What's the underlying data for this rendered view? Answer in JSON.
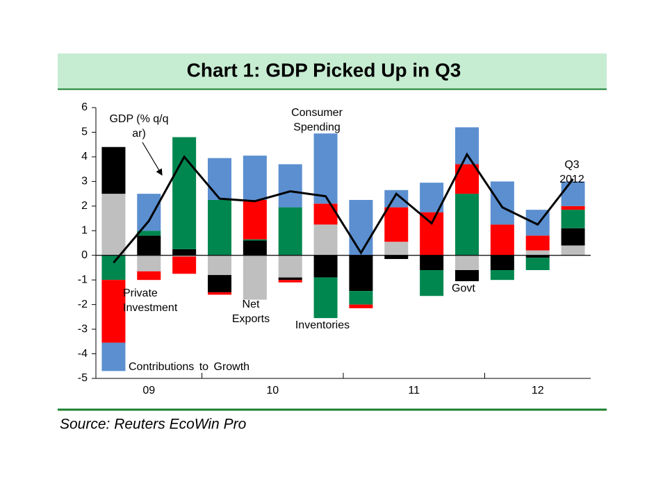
{
  "chart_data": {
    "type": "stacked_bar_line",
    "title": "Chart 1: GDP Picked Up in Q3",
    "source": "Source: Reuters EcoWin Pro",
    "annotations": [
      "Contributions to Growth",
      "Q3 2012"
    ],
    "groups": [
      {
        "label": "09",
        "size": 3
      },
      {
        "label": "10",
        "size": 4
      },
      {
        "label": "11",
        "size": 4
      },
      {
        "label": "12",
        "size": 3
      }
    ],
    "ylim": [
      -5,
      6
    ],
    "yticks": [
      -5,
      -4,
      -3,
      -2,
      -1,
      0,
      1,
      2,
      3,
      4,
      5,
      6
    ],
    "series": [
      {
        "name": "Net Exports",
        "color": "#bfbfbf",
        "values": [
          2.5,
          -0.65,
          -0.05,
          -0.8,
          -1.8,
          -0.9,
          1.25,
          0,
          0.55,
          0,
          -0.6,
          0,
          0.2,
          0.4
        ]
      },
      {
        "name": "Inventories",
        "color": "#000000",
        "values": [
          1.9,
          0.8,
          0.25,
          -0.7,
          0.6,
          -0.1,
          -0.9,
          -1.45,
          -0.15,
          -0.6,
          -0.45,
          -0.6,
          -0.1,
          0.7
        ]
      },
      {
        "name": "Govt",
        "color": "#00874f",
        "values": [
          -1.0,
          0.2,
          4.55,
          2.25,
          0.05,
          1.95,
          -1.65,
          -0.55,
          0,
          -1.05,
          2.5,
          -0.4,
          -0.5,
          0.75
        ]
      },
      {
        "name": "Private Investment",
        "color": "#ff0000",
        "values": [
          -2.55,
          -0.35,
          -0.7,
          -0.1,
          1.6,
          -0.1,
          0.85,
          -0.15,
          1.4,
          1.75,
          1.2,
          1.25,
          0.6,
          0.15
        ]
      },
      {
        "name": "Consumer Spending",
        "color": "#5b8fd0",
        "values": [
          -1.15,
          1.5,
          0,
          1.7,
          1.8,
          1.75,
          2.85,
          2.25,
          0.7,
          1.2,
          1.5,
          1.75,
          1.05,
          1.0
        ]
      }
    ],
    "line": {
      "name": "GDP (% q/q ar)",
      "color": "#000000",
      "values": [
        -0.3,
        1.4,
        4.0,
        2.3,
        2.2,
        2.6,
        2.4,
        0.1,
        2.5,
        1.3,
        4.1,
        1.95,
        1.25,
        3.1
      ]
    }
  }
}
